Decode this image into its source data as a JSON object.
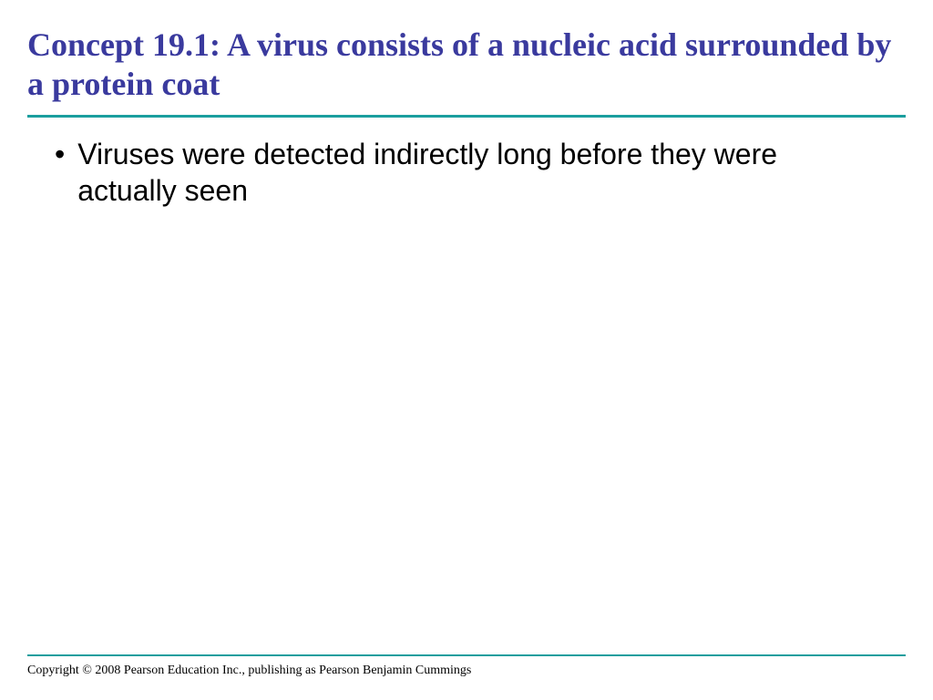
{
  "slide": {
    "title": "Concept 19.1: A virus consists of a nucleic acid surrounded by a protein coat",
    "title_color": "#3a3a9e",
    "title_fontsize": 36,
    "title_fontweight": "bold",
    "underline_color": "#1a9e9e",
    "underline_height": 3,
    "bullets": [
      {
        "text": "Viruses were detected indirectly long before they were actually seen"
      }
    ],
    "bullet_fontsize": 32,
    "bullet_color": "#000000",
    "bullet_marker": "•",
    "footer_line_color": "#1a9e9e",
    "copyright": "Copyright © 2008 Pearson Education Inc., publishing as Pearson Benjamin Cummings",
    "copyright_fontsize": 14,
    "background_color": "#ffffff"
  }
}
